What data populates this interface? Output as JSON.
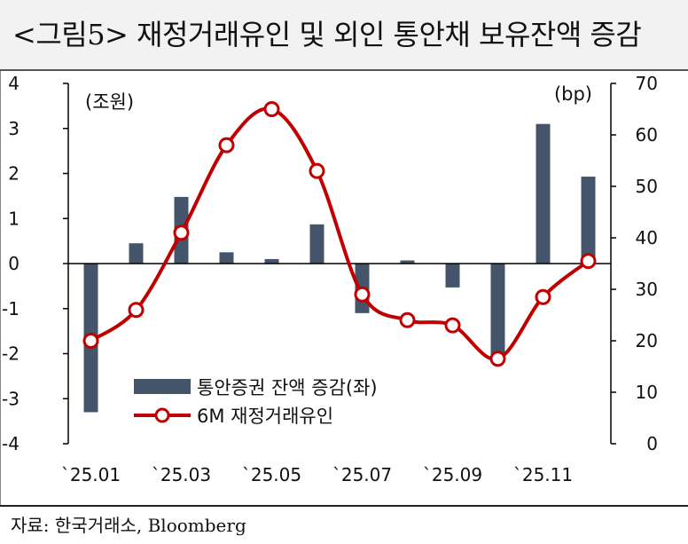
{
  "title": "<그림5> 재정거래유인 및 외인 통안채 보유잔액 증감",
  "source": "자료: 한국거래소, Bloomberg",
  "chart_data": {
    "type": "bar+line",
    "left_unit": "(조원)",
    "right_unit": "(bp)",
    "left_axis": {
      "min": -4,
      "max": 4,
      "ticks": [
        4,
        3,
        2,
        1,
        0,
        -1,
        -2,
        -3,
        -4
      ]
    },
    "right_axis": {
      "min": 0,
      "max": 70,
      "ticks": [
        70,
        60,
        50,
        40,
        30,
        20,
        10,
        0
      ]
    },
    "x_tick_labels": [
      "`25.01",
      "`25.03",
      "`25.05",
      "`25.07",
      "`25.09",
      "`25.11"
    ],
    "series": [
      {
        "name": "통안증권 잔액 증감(좌)",
        "type": "bar",
        "axis": "left",
        "color": "#44546a",
        "values": [
          -3.3,
          0.45,
          1.48,
          0.25,
          0.1,
          0.87,
          -1.1,
          0.07,
          -0.53,
          -2.15,
          3.1,
          1.93
        ]
      },
      {
        "name": "6M 재정거래유인",
        "type": "line",
        "axis": "right",
        "color": "#c00000",
        "values": [
          20,
          26,
          41,
          58,
          65,
          53,
          29,
          24,
          23,
          16.5,
          28.5,
          35.5
        ]
      }
    ],
    "legend_position": "bottom-center",
    "grid": false
  }
}
